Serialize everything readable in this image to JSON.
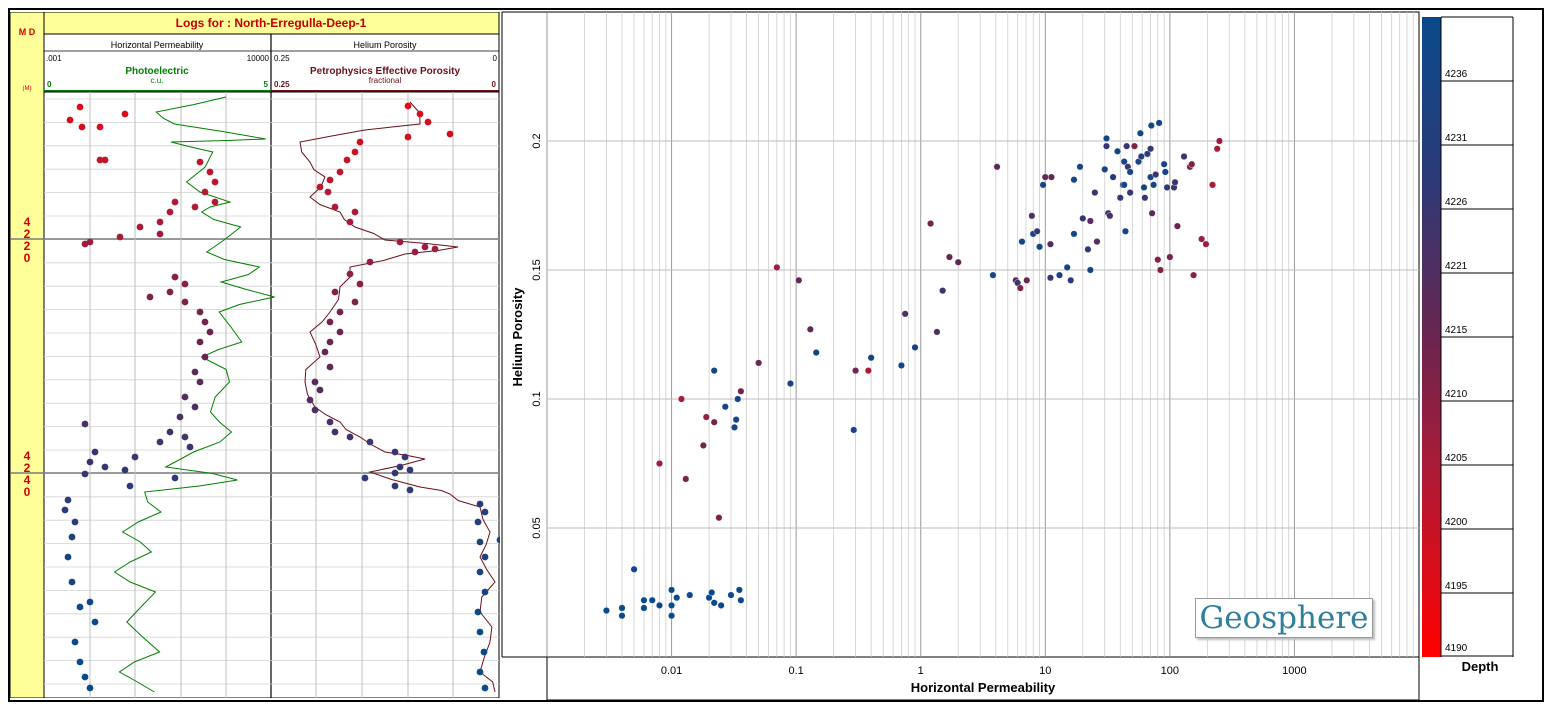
{
  "log_panel": {
    "title": "Logs for :  North-Erregulla-Deep-1",
    "md_label": "M D",
    "md_unit": "(M)",
    "depth_labels": [
      "4220",
      "4240"
    ],
    "track1": {
      "header": "Horizontal Permeability",
      "scale_left": ".001",
      "scale_right": "10000",
      "curve_name": "Photoelectric",
      "curve_unit": "c.u.",
      "curve_left": "0",
      "curve_right": "5",
      "curve_color": "#008000"
    },
    "track2": {
      "header": "Helium Porosity",
      "scale_left": "0.25",
      "scale_right": "0",
      "curve_name": "Petrophysics Effective Porosity",
      "curve_unit": "fractional",
      "curve_left": "0.25",
      "curve_right": "0",
      "curve_color": "#6b0f1a"
    },
    "colors": {
      "title_bg": "#ffff99",
      "title_text": "#c00000",
      "depth_text": "#d40000"
    }
  },
  "crossplot": {
    "colorbar": {
      "label": "Depth",
      "ticks": [
        "4236",
        "4231",
        "4226",
        "4221",
        "4215",
        "4210",
        "4205",
        "4200",
        "4195",
        "4190"
      ],
      "top_color": "#0a4a8a",
      "bottom_color": "#ff0000"
    },
    "logo": "Geosphere"
  },
  "chart_data": {
    "type": "scatter",
    "xlabel": "Horizontal Permeability",
    "ylabel": "Helium Porosity",
    "xscale": "log",
    "xlim": [
      0.001,
      10000
    ],
    "ylim": [
      0,
      0.25
    ],
    "xticks": [
      "0.01",
      "0.1",
      "1",
      "10",
      "100",
      "1000"
    ],
    "yticks": [
      "0.05",
      "0.1",
      "0.15",
      "0.2"
    ],
    "grid": true,
    "color_by": "Depth",
    "points": [
      {
        "x": 0.003,
        "y": 0.018,
        "d": 4240
      },
      {
        "x": 0.004,
        "y": 0.019,
        "d": 4240
      },
      {
        "x": 0.004,
        "y": 0.016,
        "d": 4240
      },
      {
        "x": 0.005,
        "y": 0.034,
        "d": 4240
      },
      {
        "x": 0.006,
        "y": 0.022,
        "d": 4240
      },
      {
        "x": 0.006,
        "y": 0.019,
        "d": 4240
      },
      {
        "x": 0.007,
        "y": 0.022,
        "d": 4240
      },
      {
        "x": 0.008,
        "y": 0.02,
        "d": 4240
      },
      {
        "x": 0.01,
        "y": 0.026,
        "d": 4240
      },
      {
        "x": 0.01,
        "y": 0.02,
        "d": 4240
      },
      {
        "x": 0.01,
        "y": 0.016,
        "d": 4240
      },
      {
        "x": 0.011,
        "y": 0.023,
        "d": 4240
      },
      {
        "x": 0.014,
        "y": 0.024,
        "d": 4240
      },
      {
        "x": 0.02,
        "y": 0.023,
        "d": 4240
      },
      {
        "x": 0.021,
        "y": 0.025,
        "d": 4240
      },
      {
        "x": 0.022,
        "y": 0.021,
        "d": 4240
      },
      {
        "x": 0.025,
        "y": 0.02,
        "d": 4240
      },
      {
        "x": 0.03,
        "y": 0.024,
        "d": 4240
      },
      {
        "x": 0.035,
        "y": 0.026,
        "d": 4240
      },
      {
        "x": 0.036,
        "y": 0.022,
        "d": 4240
      },
      {
        "x": 0.008,
        "y": 0.075,
        "d": 4208
      },
      {
        "x": 0.012,
        "y": 0.1,
        "d": 4206
      },
      {
        "x": 0.013,
        "y": 0.069,
        "d": 4212
      },
      {
        "x": 0.018,
        "y": 0.082,
        "d": 4214
      },
      {
        "x": 0.019,
        "y": 0.093,
        "d": 4208
      },
      {
        "x": 0.022,
        "y": 0.091,
        "d": 4214
      },
      {
        "x": 0.022,
        "y": 0.111,
        "d": 4236
      },
      {
        "x": 0.024,
        "y": 0.054,
        "d": 4212
      },
      {
        "x": 0.027,
        "y": 0.097,
        "d": 4236
      },
      {
        "x": 0.032,
        "y": 0.089,
        "d": 4236
      },
      {
        "x": 0.033,
        "y": 0.092,
        "d": 4236
      },
      {
        "x": 0.034,
        "y": 0.1,
        "d": 4236
      },
      {
        "x": 0.036,
        "y": 0.103,
        "d": 4214
      },
      {
        "x": 0.05,
        "y": 0.114,
        "d": 4216
      },
      {
        "x": 0.07,
        "y": 0.151,
        "d": 4207
      },
      {
        "x": 0.09,
        "y": 0.106,
        "d": 4236
      },
      {
        "x": 0.105,
        "y": 0.146,
        "d": 4216
      },
      {
        "x": 0.13,
        "y": 0.127,
        "d": 4218
      },
      {
        "x": 0.145,
        "y": 0.118,
        "d": 4236
      },
      {
        "x": 0.29,
        "y": 0.088,
        "d": 4236
      },
      {
        "x": 0.3,
        "y": 0.111,
        "d": 4214
      },
      {
        "x": 0.38,
        "y": 0.111,
        "d": 4205
      },
      {
        "x": 0.4,
        "y": 0.116,
        "d": 4236
      },
      {
        "x": 0.7,
        "y": 0.113,
        "d": 4236
      },
      {
        "x": 0.75,
        "y": 0.133,
        "d": 4220
      },
      {
        "x": 0.9,
        "y": 0.12,
        "d": 4234
      },
      {
        "x": 1.2,
        "y": 0.168,
        "d": 4214
      },
      {
        "x": 1.35,
        "y": 0.126,
        "d": 4220
      },
      {
        "x": 1.5,
        "y": 0.142,
        "d": 4225
      },
      {
        "x": 1.7,
        "y": 0.155,
        "d": 4216
      },
      {
        "x": 2.0,
        "y": 0.153,
        "d": 4217
      },
      {
        "x": 3.8,
        "y": 0.148,
        "d": 4236
      },
      {
        "x": 4.1,
        "y": 0.19,
        "d": 4218
      },
      {
        "x": 5.8,
        "y": 0.146,
        "d": 4218
      },
      {
        "x": 6.0,
        "y": 0.145,
        "d": 4224
      },
      {
        "x": 6.3,
        "y": 0.143,
        "d": 4212
      },
      {
        "x": 6.5,
        "y": 0.161,
        "d": 4236
      },
      {
        "x": 7.1,
        "y": 0.146,
        "d": 4216
      },
      {
        "x": 7.8,
        "y": 0.171,
        "d": 4220
      },
      {
        "x": 8.0,
        "y": 0.164,
        "d": 4236
      },
      {
        "x": 8.6,
        "y": 0.165,
        "d": 4226
      },
      {
        "x": 9.0,
        "y": 0.159,
        "d": 4236
      },
      {
        "x": 9.6,
        "y": 0.183,
        "d": 4236
      },
      {
        "x": 10.0,
        "y": 0.186,
        "d": 4216
      },
      {
        "x": 11.0,
        "y": 0.16,
        "d": 4220
      },
      {
        "x": 11.0,
        "y": 0.147,
        "d": 4226
      },
      {
        "x": 11.2,
        "y": 0.186,
        "d": 4216
      },
      {
        "x": 13.0,
        "y": 0.148,
        "d": 4236
      },
      {
        "x": 15.0,
        "y": 0.151,
        "d": 4236
      },
      {
        "x": 16.0,
        "y": 0.146,
        "d": 4228
      },
      {
        "x": 17.0,
        "y": 0.164,
        "d": 4236
      },
      {
        "x": 17.0,
        "y": 0.185,
        "d": 4236
      },
      {
        "x": 19.0,
        "y": 0.19,
        "d": 4236
      },
      {
        "x": 20.0,
        "y": 0.17,
        "d": 4226
      },
      {
        "x": 22.0,
        "y": 0.158,
        "d": 4228
      },
      {
        "x": 23.0,
        "y": 0.169,
        "d": 4218
      },
      {
        "x": 23.0,
        "y": 0.15,
        "d": 4236
      },
      {
        "x": 25.0,
        "y": 0.18,
        "d": 4224
      },
      {
        "x": 26.0,
        "y": 0.161,
        "d": 4218
      },
      {
        "x": 30.0,
        "y": 0.189,
        "d": 4236
      },
      {
        "x": 31.0,
        "y": 0.201,
        "d": 4236
      },
      {
        "x": 31.0,
        "y": 0.198,
        "d": 4226
      },
      {
        "x": 32.0,
        "y": 0.172,
        "d": 4226
      },
      {
        "x": 33.0,
        "y": 0.171,
        "d": 4220
      },
      {
        "x": 35.0,
        "y": 0.186,
        "d": 4228
      },
      {
        "x": 38.0,
        "y": 0.196,
        "d": 4236
      },
      {
        "x": 40.0,
        "y": 0.178,
        "d": 4226
      },
      {
        "x": 42.0,
        "y": 0.183,
        "d": 4228
      },
      {
        "x": 43.0,
        "y": 0.183,
        "d": 4236
      },
      {
        "x": 43.0,
        "y": 0.192,
        "d": 4236
      },
      {
        "x": 44.0,
        "y": 0.165,
        "d": 4236
      },
      {
        "x": 45.0,
        "y": 0.198,
        "d": 4224
      },
      {
        "x": 46.0,
        "y": 0.19,
        "d": 4224
      },
      {
        "x": 48.0,
        "y": 0.188,
        "d": 4236
      },
      {
        "x": 48.0,
        "y": 0.18,
        "d": 4226
      },
      {
        "x": 52.0,
        "y": 0.198,
        "d": 4212
      },
      {
        "x": 56.0,
        "y": 0.192,
        "d": 4236
      },
      {
        "x": 58.0,
        "y": 0.203,
        "d": 4236
      },
      {
        "x": 59.0,
        "y": 0.194,
        "d": 4228
      },
      {
        "x": 62.0,
        "y": 0.182,
        "d": 4236
      },
      {
        "x": 63.0,
        "y": 0.178,
        "d": 4226
      },
      {
        "x": 66.0,
        "y": 0.195,
        "d": 4230
      },
      {
        "x": 70.0,
        "y": 0.186,
        "d": 4236
      },
      {
        "x": 70.0,
        "y": 0.197,
        "d": 4226
      },
      {
        "x": 71.0,
        "y": 0.206,
        "d": 4236
      },
      {
        "x": 72.0,
        "y": 0.172,
        "d": 4218
      },
      {
        "x": 74.0,
        "y": 0.183,
        "d": 4236
      },
      {
        "x": 77.0,
        "y": 0.187,
        "d": 4224
      },
      {
        "x": 80.0,
        "y": 0.154,
        "d": 4210
      },
      {
        "x": 82.0,
        "y": 0.207,
        "d": 4236
      },
      {
        "x": 84.0,
        "y": 0.15,
        "d": 4212
      },
      {
        "x": 90.0,
        "y": 0.191,
        "d": 4236
      },
      {
        "x": 92.0,
        "y": 0.188,
        "d": 4236
      },
      {
        "x": 95.0,
        "y": 0.182,
        "d": 4226
      },
      {
        "x": 100.0,
        "y": 0.155,
        "d": 4214
      },
      {
        "x": 108.0,
        "y": 0.182,
        "d": 4226
      },
      {
        "x": 110.0,
        "y": 0.184,
        "d": 4224
      },
      {
        "x": 115.0,
        "y": 0.167,
        "d": 4216
      },
      {
        "x": 130.0,
        "y": 0.194,
        "d": 4226
      },
      {
        "x": 145.0,
        "y": 0.19,
        "d": 4212
      },
      {
        "x": 150.0,
        "y": 0.191,
        "d": 4212
      },
      {
        "x": 155.0,
        "y": 0.148,
        "d": 4210
      },
      {
        "x": 180.0,
        "y": 0.162,
        "d": 4208
      },
      {
        "x": 195.0,
        "y": 0.16,
        "d": 4208
      },
      {
        "x": 220.0,
        "y": 0.183,
        "d": 4205
      },
      {
        "x": 240.0,
        "y": 0.197,
        "d": 4205
      },
      {
        "x": 250.0,
        "y": 0.2,
        "d": 4208
      }
    ]
  }
}
